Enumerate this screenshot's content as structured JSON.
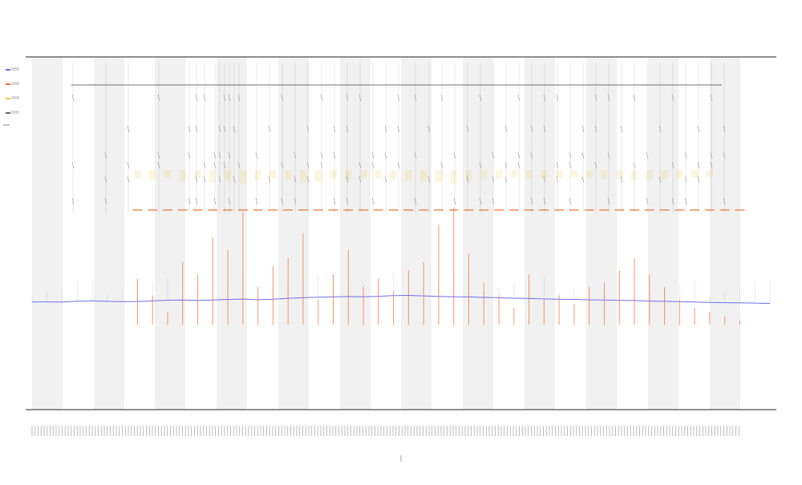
{
  "chart_data": {
    "type": "line",
    "title": "",
    "subtitle_1": "",
    "subtitle_2": "",
    "xlabel": "",
    "ylabel": "",
    "legend_position": "top-left",
    "grid": false,
    "x_range": [
      0,
      1
    ],
    "y_range": [
      0,
      1
    ],
    "series": [
      {
        "color": "#6f6ff0",
        "style": "line",
        "values": [
          0.239,
          0.24,
          0.238,
          0.248,
          0.252,
          0.246,
          0.242,
          0.245,
          0.251,
          0.259,
          0.261,
          0.257,
          0.262,
          0.268,
          0.272,
          0.265,
          0.27,
          0.281,
          0.287,
          0.293,
          0.296,
          0.301,
          0.298,
          0.304,
          0.311,
          0.314,
          0.308,
          0.303,
          0.298,
          0.296,
          0.291,
          0.287,
          0.282,
          0.278,
          0.274,
          0.271,
          0.268,
          0.264,
          0.261,
          0.258,
          0.255,
          0.249,
          0.246,
          0.243,
          0.238,
          0.234,
          0.231,
          0.229,
          0.226,
          0.223
        ]
      },
      {
        "color": "#ef6d2a",
        "style": "spikes",
        "values": [
          0.0,
          0.0,
          0.0,
          0.0,
          0.0,
          0.0,
          0.0,
          0.11,
          0.07,
          0.03,
          0.15,
          0.12,
          0.21,
          0.18,
          0.27,
          0.09,
          0.14,
          0.16,
          0.22,
          0.06,
          0.12,
          0.18,
          0.09,
          0.11,
          0.08,
          0.13,
          0.15,
          0.24,
          0.28,
          0.17,
          0.1,
          0.07,
          0.04,
          0.12,
          0.06,
          0.07,
          0.05,
          0.09,
          0.1,
          0.13,
          0.16,
          0.12,
          0.09,
          0.06,
          0.04,
          0.03,
          0.02,
          0.01,
          0.0,
          0.0
        ]
      },
      {
        "color": "#e8cf41",
        "style": "bands",
        "values": [
          0.0,
          0.0,
          0.0,
          0.0,
          0.0,
          0.0,
          0.0,
          0.03,
          0.05,
          0.02,
          0.08,
          0.04,
          0.09,
          0.07,
          0.11,
          0.06,
          0.03,
          0.05,
          0.1,
          0.09,
          0.04,
          0.06,
          0.03,
          0.02,
          0.05,
          0.07,
          0.08,
          0.09,
          0.11,
          0.07,
          0.05,
          0.03,
          0.02,
          0.04,
          0.03,
          0.02,
          0.01,
          0.02,
          0.04,
          0.05,
          0.06,
          0.05,
          0.04,
          0.03,
          0.02,
          0.01,
          0.0,
          0.0,
          0.0,
          0.0
        ]
      }
    ],
    "color_palette": {
      "background": "#ffffff",
      "shade": "#f1f1f1",
      "axis": "#222222",
      "text": "#333333",
      "blue": "#6f6ff0",
      "orange": "#ef6d2a",
      "yellow": "#e8cf41",
      "gray": "#666666"
    },
    "legend": [
      {
        "name": "",
        "color": "#6f6ff0"
      },
      {
        "name": "",
        "color": "#ef6d2a"
      },
      {
        "name": "",
        "color": "#e8cf41"
      },
      {
        "name": "",
        "color": "#666666"
      }
    ]
  }
}
